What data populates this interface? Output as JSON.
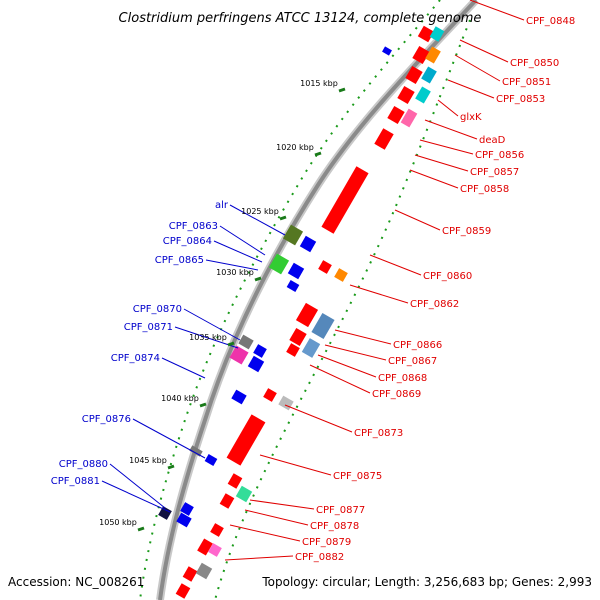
{
  "title": "Clostridium perfringens ATCC 13124, complete genome",
  "footer": {
    "accession": "Accession: NC_008261",
    "summary": "Topology: circular; Length: 3,256,683 bp; Genes: 2,993"
  },
  "colors": {
    "backbone": "#888888",
    "forward_feature": "#ff0000",
    "reverse_feature": "#0000ee",
    "forward_label": "#e00000",
    "reverse_label": "#0000cc",
    "dotted_track": "#1a9a1a",
    "skew_mark": "#1a7a1a"
  },
  "kbp_ticks": [
    "1015 kbp",
    "1020 kbp",
    "1025 kbp",
    "1030 kbp",
    "1035 kbp",
    "1040 kbp",
    "1045 kbp",
    "1050 kbp"
  ],
  "forward_labels": [
    "CPF_0848",
    "CPF_0850",
    "CPF_0851",
    "CPF_0853",
    "glxK",
    "deaD",
    "CPF_0856",
    "CPF_0857",
    "CPF_0858",
    "CPF_0859",
    "CPF_0860",
    "CPF_0862",
    "CPF_0866",
    "CPF_0867",
    "CPF_0868",
    "CPF_0869",
    "CPF_0873",
    "CPF_0875",
    "CPF_0877",
    "CPF_0878",
    "CPF_0879",
    "CPF_0882"
  ],
  "reverse_labels": [
    "alr",
    "CPF_0863",
    "CPF_0864",
    "CPF_0865",
    "CPF_0870",
    "CPF_0871",
    "CPF_0874",
    "CPF_0876",
    "CPF_0880",
    "CPF_0881"
  ]
}
